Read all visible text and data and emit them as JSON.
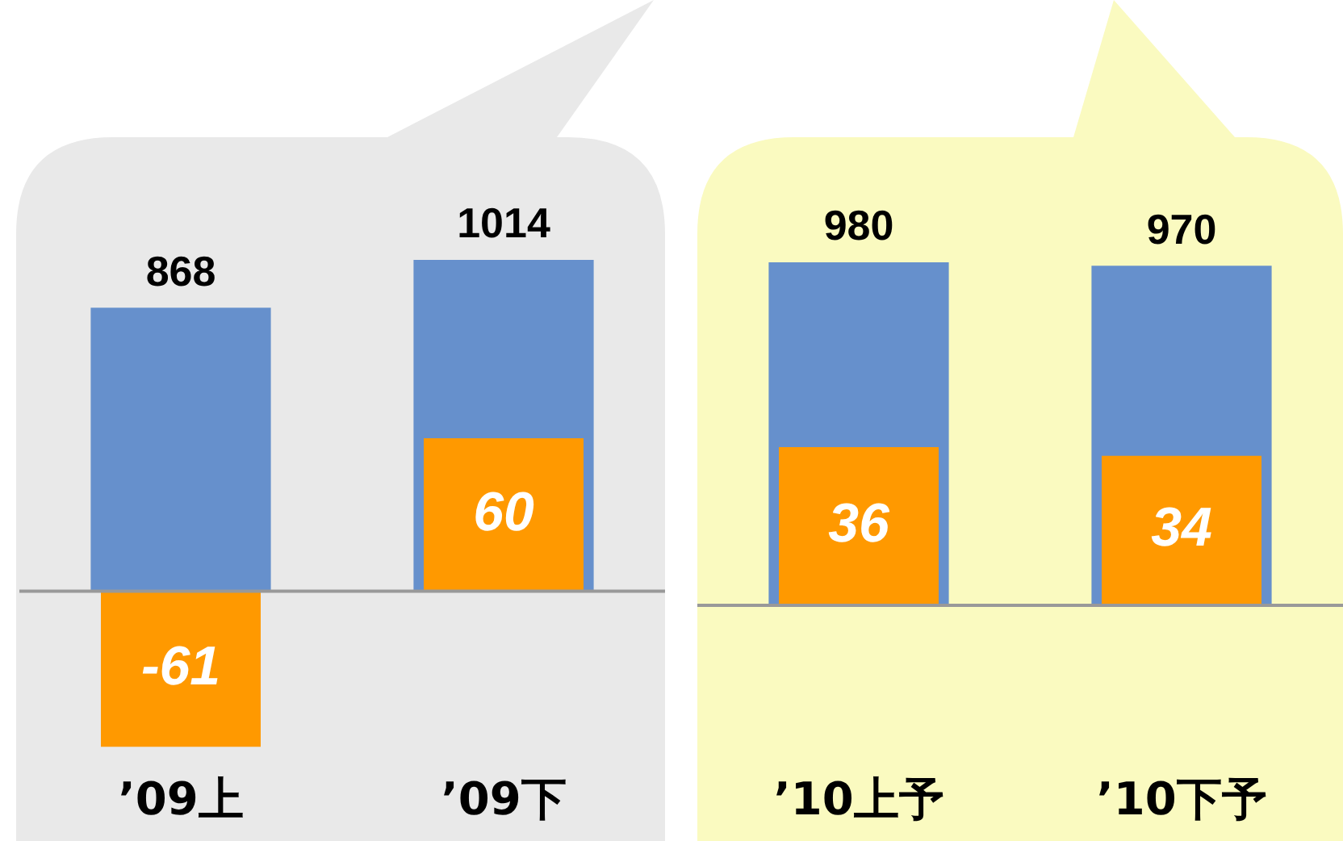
{
  "chart_data": [
    {
      "type": "bar",
      "categories": [
        "’09上",
        "’09下"
      ],
      "series": [
        {
          "color": "#6690cc",
          "values": [
            868,
            1014
          ]
        },
        {
          "color": "#ff9900",
          "values": [
            -61,
            60
          ],
          "axis": "y2"
        }
      ],
      "tick_labels": "x",
      "data_labels": true,
      "ref_lines": [
        {
          "axis": "y",
          "value": 0,
          "color": "#999999"
        }
      ]
    },
    {
      "type": "bar",
      "categories": [
        "’10上予",
        "’10下予"
      ],
      "series": [
        {
          "color": "#6690cc",
          "values": [
            980,
            970
          ]
        },
        {
          "color": "#ff9900",
          "values": [
            36,
            34
          ],
          "axis": "y2"
        }
      ],
      "tick_labels": "x",
      "data_labels": true,
      "ref_lines": [
        {
          "axis": "y",
          "value": 0,
          "color": "#999999"
        }
      ]
    }
  ]
}
